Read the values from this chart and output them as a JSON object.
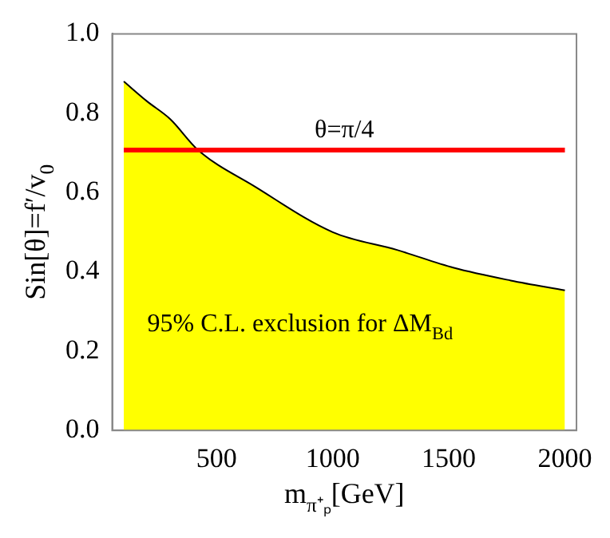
{
  "chart_data": {
    "type": "area",
    "xlabel": "m$_{π⁺ₚ}$[GeV]",
    "ylabel": "Sin[θ]=f′/v$_{0}$",
    "x": [
      100,
      200,
      300,
      420,
      664,
      1000,
      1277,
      1522,
      1767,
      2000
    ],
    "series": [
      {
        "color": "#ffff00",
        "values": [
          0.88,
          0.83,
          0.785,
          0.707,
          0.615,
          0.5,
          0.455,
          0.41,
          0.378,
          0.353
        ]
      },
      {
        "type": "line",
        "name": "θ=π/4",
        "color": "#ff0000",
        "x": [
          100,
          2000
        ],
        "values": [
          0.707,
          0.707
        ]
      }
    ],
    "xlim": [
      50,
      2050
    ],
    "xticks": [
      500,
      1000,
      1500,
      2000
    ],
    "ylim": [
      0,
      1
    ],
    "yticks": [
      {
        "value": 0,
        "label": "0.0"
      },
      0.2,
      0.4,
      0.6,
      0.8,
      {
        "value": 1,
        "label": "1.0"
      }
    ],
    "annotations": [
      "95% C.L. exclusion for ΔM$_{Bd}$"
    ],
    "grid": false,
    "legend": false,
    "marker": "none",
    "line_style": "solid"
  }
}
